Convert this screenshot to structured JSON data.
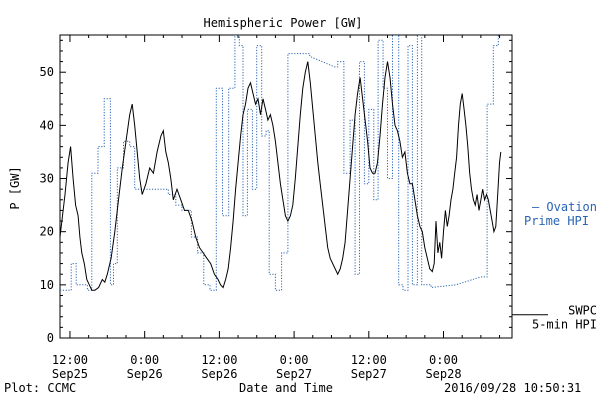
{
  "chart_data": {
    "type": "line",
    "title": "Hemispheric Power [GW]",
    "ylabel": "P [GW]",
    "xlabel": "Date and Time",
    "ylim": [
      0,
      57
    ],
    "yticks": [
      0,
      10,
      20,
      30,
      40,
      50
    ],
    "xticks": [
      {
        "time": "12:00",
        "date": "Sep25",
        "hours": 0
      },
      {
        "time": "0:00",
        "date": "Sep26",
        "hours": 12
      },
      {
        "time": "12:00",
        "date": "Sep26",
        "hours": 24
      },
      {
        "time": "0:00",
        "date": "Sep27",
        "hours": 36
      },
      {
        "time": "12:00",
        "date": "Sep27",
        "hours": 48
      },
      {
        "time": "0:00",
        "date": "Sep28",
        "hours": 60
      }
    ],
    "xlim_hours": [
      -1.6,
      71.0
    ],
    "series": [
      {
        "name": "SWPC 5-min HPI",
        "color": "#000000",
        "style": "solid",
        "points": [
          [
            -1.6,
            19
          ],
          [
            -0.8,
            27
          ],
          [
            -0.3,
            33
          ],
          [
            0.1,
            36
          ],
          [
            0.5,
            30
          ],
          [
            0.9,
            25
          ],
          [
            1.3,
            23
          ],
          [
            1.6,
            19
          ],
          [
            1.9,
            16
          ],
          [
            2.3,
            14
          ],
          [
            2.7,
            11
          ],
          [
            3.1,
            10
          ],
          [
            3.5,
            9
          ],
          [
            4.0,
            9
          ],
          [
            4.6,
            9.5
          ],
          [
            5.2,
            11
          ],
          [
            5.6,
            10.5
          ],
          [
            6.0,
            12
          ],
          [
            6.6,
            15
          ],
          [
            7.2,
            20
          ],
          [
            7.8,
            26
          ],
          [
            8.4,
            32
          ],
          [
            9.0,
            37
          ],
          [
            9.6,
            42
          ],
          [
            10.0,
            44
          ],
          [
            10.4,
            40
          ],
          [
            10.8,
            35
          ],
          [
            11.2,
            30
          ],
          [
            11.6,
            27
          ],
          [
            12.2,
            29
          ],
          [
            12.8,
            32
          ],
          [
            13.4,
            31
          ],
          [
            14.0,
            35
          ],
          [
            14.6,
            38
          ],
          [
            15.0,
            39
          ],
          [
            15.4,
            35
          ],
          [
            15.8,
            33
          ],
          [
            16.2,
            30
          ],
          [
            16.6,
            26
          ],
          [
            17.2,
            28
          ],
          [
            17.8,
            26
          ],
          [
            18.4,
            24
          ],
          [
            19.0,
            24
          ],
          [
            19.6,
            22
          ],
          [
            20.2,
            19
          ],
          [
            20.8,
            17
          ],
          [
            21.4,
            16
          ],
          [
            22.0,
            15
          ],
          [
            22.6,
            14
          ],
          [
            23.2,
            12
          ],
          [
            23.8,
            11
          ],
          [
            24.2,
            10
          ],
          [
            24.6,
            9.5
          ],
          [
            25.0,
            11
          ],
          [
            25.4,
            13
          ],
          [
            25.8,
            17
          ],
          [
            26.2,
            22
          ],
          [
            26.6,
            28
          ],
          [
            27.0,
            33
          ],
          [
            27.4,
            38
          ],
          [
            27.8,
            42
          ],
          [
            28.2,
            44
          ],
          [
            28.6,
            47
          ],
          [
            29.0,
            48
          ],
          [
            29.4,
            46
          ],
          [
            29.8,
            44
          ],
          [
            30.2,
            45
          ],
          [
            30.6,
            42
          ],
          [
            31.0,
            45
          ],
          [
            31.4,
            43
          ],
          [
            31.8,
            41
          ],
          [
            32.2,
            42
          ],
          [
            32.6,
            40
          ],
          [
            33.0,
            37
          ],
          [
            33.4,
            33
          ],
          [
            33.8,
            29
          ],
          [
            34.2,
            26
          ],
          [
            34.6,
            23
          ],
          [
            35.0,
            22
          ],
          [
            35.4,
            23
          ],
          [
            35.8,
            25
          ],
          [
            36.2,
            30
          ],
          [
            36.6,
            36
          ],
          [
            37.0,
            42
          ],
          [
            37.4,
            47
          ],
          [
            37.8,
            50
          ],
          [
            38.2,
            52
          ],
          [
            38.6,
            48
          ],
          [
            39.0,
            43
          ],
          [
            39.4,
            38
          ],
          [
            39.8,
            33
          ],
          [
            40.2,
            29
          ],
          [
            40.6,
            25
          ],
          [
            41.0,
            21
          ],
          [
            41.4,
            17
          ],
          [
            41.8,
            15
          ],
          [
            42.2,
            14
          ],
          [
            42.6,
            13
          ],
          [
            43.0,
            12
          ],
          [
            43.4,
            13
          ],
          [
            43.8,
            15
          ],
          [
            44.2,
            18
          ],
          [
            44.6,
            24
          ],
          [
            45.0,
            30
          ],
          [
            45.4,
            36
          ],
          [
            45.8,
            42
          ],
          [
            46.2,
            46
          ],
          [
            46.6,
            49
          ],
          [
            47.0,
            45
          ],
          [
            47.4,
            41
          ],
          [
            47.8,
            37
          ],
          [
            48.2,
            32
          ],
          [
            48.6,
            31
          ],
          [
            49.0,
            31
          ],
          [
            49.4,
            33
          ],
          [
            49.8,
            38
          ],
          [
            50.2,
            44
          ],
          [
            50.6,
            49
          ],
          [
            51.0,
            52
          ],
          [
            51.4,
            49
          ],
          [
            51.8,
            44
          ],
          [
            52.2,
            40
          ],
          [
            52.6,
            39
          ],
          [
            53.0,
            37
          ],
          [
            53.4,
            34
          ],
          [
            53.8,
            35
          ],
          [
            54.2,
            31
          ],
          [
            54.6,
            29
          ],
          [
            55.0,
            29
          ],
          [
            55.4,
            26
          ],
          [
            55.8,
            23
          ],
          [
            56.2,
            21
          ],
          [
            56.6,
            20
          ],
          [
            57.0,
            17
          ],
          [
            57.4,
            15
          ],
          [
            57.8,
            13
          ],
          [
            58.2,
            12.5
          ],
          [
            58.5,
            14
          ],
          [
            58.8,
            22
          ],
          [
            59.1,
            16
          ],
          [
            59.4,
            18
          ],
          [
            59.7,
            15
          ],
          [
            60.0,
            20
          ],
          [
            60.3,
            24
          ],
          [
            60.6,
            21
          ],
          [
            60.9,
            23
          ],
          [
            61.2,
            26
          ],
          [
            61.5,
            28
          ],
          [
            61.8,
            31
          ],
          [
            62.1,
            34
          ],
          [
            62.4,
            40
          ],
          [
            62.7,
            44
          ],
          [
            63.0,
            46
          ],
          [
            63.3,
            43
          ],
          [
            63.6,
            40
          ],
          [
            63.9,
            36
          ],
          [
            64.2,
            31
          ],
          [
            64.5,
            28
          ],
          [
            64.8,
            26
          ],
          [
            65.1,
            25
          ],
          [
            65.4,
            27
          ],
          [
            65.7,
            24
          ],
          [
            66.0,
            26
          ],
          [
            66.3,
            28
          ],
          [
            66.6,
            26
          ],
          [
            66.9,
            27
          ],
          [
            67.2,
            26
          ],
          [
            67.5,
            24
          ],
          [
            67.8,
            22
          ],
          [
            68.1,
            20
          ],
          [
            68.4,
            21
          ],
          [
            68.7,
            27
          ],
          [
            69.0,
            33
          ],
          [
            69.2,
            35
          ]
        ]
      },
      {
        "name": "Ovation Prime HPI",
        "color": "#2a64b5",
        "style": "dotted",
        "points": [
          [
            -1.6,
            9
          ],
          [
            0.2,
            9
          ],
          [
            0.2,
            14
          ],
          [
            1.0,
            14
          ],
          [
            1.0,
            10
          ],
          [
            2.8,
            10
          ],
          [
            2.8,
            9
          ],
          [
            3.5,
            9
          ],
          [
            3.5,
            31
          ],
          [
            4.5,
            31
          ],
          [
            4.5,
            36
          ],
          [
            5.5,
            36
          ],
          [
            5.5,
            45
          ],
          [
            6.5,
            45
          ],
          [
            6.5,
            10
          ],
          [
            7.0,
            10
          ],
          [
            7.0,
            14
          ],
          [
            7.6,
            14
          ],
          [
            7.6,
            32
          ],
          [
            8.6,
            32
          ],
          [
            8.6,
            37
          ],
          [
            9.6,
            37
          ],
          [
            9.6,
            36
          ],
          [
            10.4,
            36
          ],
          [
            10.4,
            28
          ],
          [
            15.8,
            28
          ],
          [
            15.8,
            27
          ],
          [
            17.0,
            27
          ],
          [
            17.0,
            25
          ],
          [
            18.0,
            25
          ],
          [
            18.0,
            24
          ],
          [
            19.5,
            24
          ],
          [
            19.5,
            19
          ],
          [
            20.5,
            19
          ],
          [
            20.5,
            16
          ],
          [
            21.5,
            16
          ],
          [
            21.5,
            10
          ],
          [
            22.5,
            10
          ],
          [
            22.5,
            9
          ],
          [
            23.5,
            9
          ],
          [
            23.5,
            47
          ],
          [
            24.5,
            47
          ],
          [
            24.5,
            23
          ],
          [
            25.5,
            23
          ],
          [
            25.5,
            47
          ],
          [
            26.5,
            47
          ],
          [
            26.5,
            57
          ],
          [
            27.2,
            57
          ],
          [
            27.2,
            55
          ],
          [
            27.8,
            55
          ],
          [
            27.8,
            23
          ],
          [
            28.5,
            23
          ],
          [
            28.5,
            43
          ],
          [
            29.3,
            43
          ],
          [
            29.3,
            28
          ],
          [
            30.0,
            28
          ],
          [
            30.0,
            55
          ],
          [
            30.8,
            55
          ],
          [
            30.8,
            38
          ],
          [
            31.5,
            38
          ],
          [
            31.5,
            39
          ],
          [
            32.0,
            39
          ],
          [
            32.0,
            12
          ],
          [
            33.0,
            12
          ],
          [
            33.0,
            9
          ],
          [
            34.0,
            9
          ],
          [
            34.0,
            16
          ],
          [
            35.0,
            16
          ],
          [
            35.0,
            53.5
          ],
          [
            38.5,
            53.5
          ],
          [
            38.5,
            53
          ],
          [
            42.5,
            51
          ],
          [
            43.0,
            51
          ],
          [
            43.0,
            52
          ],
          [
            44.0,
            52
          ],
          [
            44.0,
            31
          ],
          [
            45.0,
            31
          ],
          [
            45.0,
            41
          ],
          [
            45.8,
            41
          ],
          [
            45.8,
            12
          ],
          [
            46.5,
            12
          ],
          [
            46.5,
            52
          ],
          [
            47.3,
            52
          ],
          [
            47.3,
            29
          ],
          [
            48.0,
            29
          ],
          [
            48.0,
            43
          ],
          [
            48.8,
            43
          ],
          [
            48.8,
            26
          ],
          [
            49.5,
            26
          ],
          [
            49.5,
            56
          ],
          [
            50.3,
            56
          ],
          [
            50.3,
            47
          ],
          [
            51.0,
            47
          ],
          [
            51.0,
            30
          ],
          [
            51.8,
            30
          ],
          [
            51.8,
            57
          ],
          [
            52.8,
            57
          ],
          [
            52.8,
            10
          ],
          [
            53.5,
            10
          ],
          [
            53.5,
            9
          ],
          [
            54.3,
            9
          ],
          [
            54.3,
            55
          ],
          [
            55.0,
            55
          ],
          [
            55.0,
            10
          ],
          [
            55.8,
            10
          ],
          [
            55.8,
            57
          ],
          [
            56.5,
            57
          ],
          [
            56.5,
            10
          ],
          [
            58.0,
            10
          ],
          [
            58.0,
            9.5
          ],
          [
            62.0,
            10
          ],
          [
            66.0,
            11.5
          ],
          [
            67.0,
            11.5
          ],
          [
            67.0,
            44
          ],
          [
            68.0,
            44
          ],
          [
            68.0,
            55
          ],
          [
            68.8,
            55
          ],
          [
            68.8,
            57
          ]
        ]
      }
    ],
    "legend": [
      {
        "text": "— Ovation",
        "line2": "Prime HPI",
        "color": "#2a64b5",
        "attach_value": 23.5
      },
      {
        "text": "SWPC",
        "line2": "5-min HPI",
        "color": "#000000",
        "attach_value": 2.5
      }
    ]
  },
  "footer": {
    "plot_credit": "Plot: CCMC",
    "timestamp": "2016/09/28 10:50:31"
  }
}
